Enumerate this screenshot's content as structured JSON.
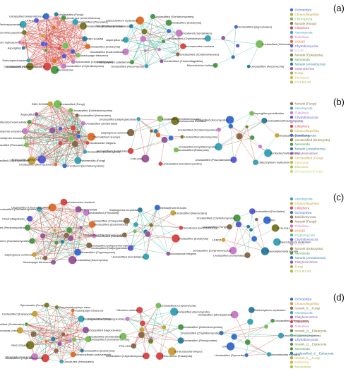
{
  "panels": [
    {
      "letter": "(a)",
      "networks": [
        {
          "labels": [
            "Unclassified (Fungi)",
            "Uncultured (centroheliozoa)",
            "Unclassified (Pinnularia)",
            "Unclassified (Rhizosolenidae)",
            "RM2-SGM58",
            "Unclassified (Eukaryota)",
            "Acaulopage tetraceros",
            "Spiromastix (Chytridiomycota)",
            "Unclassified (Chytridiomycota)",
            "Parmoderma",
            "Unclassified (Sordariomycetes)",
            "Uncultured (H1-10)",
            "Pseudoplectospora",
            "Aspergillus",
            "Cladochytrium replicatum",
            "Dolcemonas japonica",
            "Unclassified (Plectosporaceae)",
            "LKM15",
            "Unclassified (Heterotrichea)"
          ]
        },
        {
          "labels": [
            "Unclassified (Sordariomycetes)",
            "Unclassified (Eukaryota)",
            "Uncultured (Sordariales)",
            "Ischnamoeba montana",
            "Unclassified (Sordariomycetes)",
            "Unclassified (Choanoflagellata)",
            "Unclassified (Ascomycota)",
            "Rhizophydium patellarium",
            "Unclassified (Euamoebida)",
            "Aspergillus sp",
            "Unclassified (Sordariales)",
            "Cladochytrium replicatum"
          ]
        },
        {
          "labels": [
            "Unclassified (Hypocreales)",
            "Unclassified (Heloscales)",
            "Unclassified (Ascomycota)",
            "Microdochium bolleyi",
            "Unclassified (Chytridiomycota)"
          ]
        }
      ],
      "legend": [
        {
          "text": "Ochrophyta",
          "color": "#3b6fcf"
        },
        {
          "text": "Choanoflagellata",
          "color": "#c9a23a"
        },
        {
          "text": "Chlorophyta",
          "color": "#7bbd5a"
        },
        {
          "text": "Norank (Fungi)",
          "color": "#8b6a4a"
        },
        {
          "text": "Ciliophora",
          "color": "#d64a4a"
        },
        {
          "text": "Ascomycota",
          "color": "#3aa3b5"
        },
        {
          "text": "Tubulinea",
          "color": "#c77ec7"
        },
        {
          "text": "LKM15",
          "color": "#e06f2e"
        },
        {
          "text": "Chytridiomycota",
          "color": "#5b5bd6"
        },
        {
          "text": "H1-10",
          "color": "#c7a6e0"
        },
        {
          "text": "Norank (Eukaryota)",
          "color": "#7a7a2a"
        },
        {
          "text": "Nematoda",
          "color": "#4a9a4a"
        },
        {
          "text": "Norank (Amoebozoa)",
          "color": "#2f7f9f"
        },
        {
          "text": "Heterotrichea",
          "color": "#9a5a9a"
        },
        {
          "text": "Fungi",
          "color": "#b5a84a"
        },
        {
          "text": "Cercozoa",
          "color": "#d9b24a"
        },
        {
          "text": "CV1-B1-93",
          "color": "#a8c64a"
        }
      ]
    },
    {
      "letter": "(b)",
      "networks": [
        {
          "labels": [
            "Unclassified (Fungi)",
            "Unclassified (Dothideomycetes)",
            "Unclassified (Heloscales)",
            "Unclassified (Sordariales)",
            "Stenosiphum leucops",
            "Novaraceae elegans",
            "Unclassified (Ascomycota)",
            "Parameciida (Fungi)",
            "Uncultured (Sordariomycetes)",
            "Unclassified (Microsclerida)",
            "Acaulopage tetraceros",
            "Unclassified (Salpingoecidae)",
            "Unclassified (Pinnularia)",
            "Stenosiphum leucops",
            "Saklosporas euryoecia",
            "Unclassified (Ischnamoebida)",
            "Aspergillus",
            "RM2-SGM58"
          ]
        },
        {
          "labels": [
            "Unclassified (Chytridiomycota)",
            "Ischnamoeba montana",
            "Unclassified (Ascomycota)",
            "Unclassified (Eukaryota)",
            "Unclassified (Sordariomycetes)",
            "FFN-2011",
            "Unclassified (Sordariales)",
            "Salpingoeca ventriosa",
            "Unclassified (Salpingoecidae)"
          ]
        },
        {
          "labels": [
            "Aspergillus penicilloides",
            "Unclassified (Rozellomycota)",
            "Unclassified (Eukaryota)",
            "Vorticella (Vorticellinae)",
            "Cladochytrium replicatum",
            "Unclassified (Placotaeniales)",
            "Unclassified (Chytridiomycota)",
            "Unclassified (Sordariomycetes)",
            "Unclassified (Ascomycota)"
          ]
        }
      ],
      "legend": [
        {
          "text": "Norank (Fungi)",
          "color": "#8b6a4a"
        },
        {
          "text": "Ascomycota",
          "color": "#3aa3b5"
        },
        {
          "text": "Tubulinea",
          "color": "#c77ec7"
        },
        {
          "text": "Chytridiomycota",
          "color": "#5b5bd6"
        },
        {
          "text": "H1-10",
          "color": "#c7a6e0"
        },
        {
          "text": "Ciliophora",
          "color": "#d64a4a"
        },
        {
          "text": "Choanoflagellata",
          "color": "#c9a23a"
        },
        {
          "text": "Rozellomycota",
          "color": "#3b6fcf"
        },
        {
          "text": "Unclassified (Eukaryota)",
          "color": "#7a7a2a"
        },
        {
          "text": "Nematoda",
          "color": "#4a9a4a"
        },
        {
          "text": "Norank (Amoebozoa)",
          "color": "#2f7f9f"
        },
        {
          "text": "Platyhelminthes",
          "color": "#9a5a9a"
        },
        {
          "text": "Unclassified (Fungi)",
          "color": "#b5a84a"
        },
        {
          "text": "Cercozoa",
          "color": "#d9b24a"
        },
        {
          "text": "Discosea",
          "color": "#a8c64a"
        },
        {
          "text": "Ochrophyta (Fungi)",
          "color": "#c8d87a"
        }
      ]
    },
    {
      "letter": "(c)",
      "networks": [
        {
          "labels": [
            "Ischnamoeba montana",
            "RM2-SGM58",
            "Unclassified (Pinnularia)",
            "Unclassified (Euamoebida)",
            "Uncultured (Sordariales)",
            "Unclassified (Oligohymenophorea)",
            "Unclassified (Cryptomycota)",
            "Unclassified (Ascomycota)",
            "Acaulopage tetraceros",
            "H1-10",
            "Salpingoeca ventriosa",
            "Uncultured (Sordariomycetes)",
            "Unclassified (Pezizomycotina)",
            "Choanoflagellates_2",
            "Unclassified (Sordariomycetes)",
            "Unclassified (Choanoflagellata)"
          ]
        },
        {
          "labels": [
            "Stenosiphum leucops",
            "Unclassified (Heloscales)",
            "Uncultured (centroheliozoa)",
            "Unclassified (Eukaryota)",
            "Novaraceae elegans",
            "Unclassified (Sordariales)",
            "Unclassified (Salpingoecidae)",
            "Unclassified (Plectosporaceae)",
            "Unclassified (Craspedida)",
            "Salpingoeca euryoecia"
          ]
        },
        {
          "labels": [
            "Unclassified (Eurotiales)",
            "CRI7",
            "FFN-2011",
            "Cladochytrium replicatum",
            "Pseudoplectania nigrella",
            "Unclassified (Sordariales)",
            "Unclassified (Chytridiomycota)",
            "LKM15",
            "Unclassified (Fungi)",
            "Unclassified (Chytridiomycota)"
          ]
        }
      ],
      "legend": [
        {
          "text": "Ascomycota",
          "color": "#3aa3b5"
        },
        {
          "text": "Choanoflagellata",
          "color": "#c9a23a"
        },
        {
          "text": "Ciliophora",
          "color": "#d64a4a"
        },
        {
          "text": "Ochrophyta",
          "color": "#3b6fcf"
        },
        {
          "text": "Basidiomycota",
          "color": "#8b6a4a"
        },
        {
          "text": "Norank (Fungi)",
          "color": "#7b5a3a"
        },
        {
          "text": "Tubulinea",
          "color": "#c77ec7"
        },
        {
          "text": "LKM15",
          "color": "#e06f2e"
        },
        {
          "text": "Cryptomycota",
          "color": "#5bbd9a"
        },
        {
          "text": "Chytridiomycota",
          "color": "#5b5bd6"
        },
        {
          "text": "H1-10",
          "color": "#c7a6e0"
        },
        {
          "text": "Norank (Eukaryota)",
          "color": "#7a7a2a"
        },
        {
          "text": "Nematoda",
          "color": "#4a9a4a"
        },
        {
          "text": "Norank (Amoebozoa)",
          "color": "#2f7f9f"
        },
        {
          "text": "Platyhelminthes",
          "color": "#9a5a9a"
        },
        {
          "text": "Fungi",
          "color": "#b5a84a"
        },
        {
          "text": "CV1-B1-93",
          "color": "#a8c64a"
        }
      ]
    },
    {
      "letter": "(d)",
      "networks": [
        {
          "labels": [
            "Pseudoplatyophrya nana",
            "Acaulopage tetraceros",
            "Salpingoeca ventriosa",
            "Unclassified (Hypocreales)",
            "Unclassified (Sordariomycetes)",
            "Unclassified (Eukaryota)",
            "Micronuclearia podoventralis",
            "Uncultured (Heloscales)",
            "Unclassified (Chytridiomycota)",
            "Stenosiphum leucops",
            "RM2-SGM58",
            "Dolcemonas vorax",
            "Unclassified (Sordariales)",
            "Unclassified (Eukaryota)",
            "Spiromastix (Fungi)"
          ]
        },
        {
          "labels": [
            "Unclassified (Cryptomycota)",
            "Unclassified (Ascomycota)",
            "Unclassified (Dothideomycetes)",
            "Unclassified (Pleosporales)",
            "Schizosaccharomyces",
            "Pleurotricha (Eukaryota)",
            "Unclassified (Chytridiomycota)",
            "FFN-2011",
            "Unclassified (Sordariales)",
            "Unclassified (Salpingoecidae)",
            "Meloiera varians"
          ]
        },
        {
          "labels": [
            "Cladochytrium replicatum",
            "Unclassified (Pleosporales)",
            "Uncultured (Sordariomycetes)",
            "Ischnamoeba montana",
            "Unclassified (Spumella)",
            "CRI7",
            "Unclassified (Chytridiomycota)",
            "Unclassified (Monhysterida)"
          ]
        }
      ],
      "legend": [
        {
          "text": "Ochrophyta",
          "color": "#3b6fcf"
        },
        {
          "text": "Choanoflagellata",
          "color": "#c9a23a"
        },
        {
          "text": "norank_k__Fungi",
          "color": "#8b6a4a"
        },
        {
          "text": "Ascomycota",
          "color": "#3aa3b5"
        },
        {
          "text": "Platyhelminthes",
          "color": "#9a5a9a"
        },
        {
          "text": "Ciliophora",
          "color": "#d64a4a"
        },
        {
          "text": "Tubulinea",
          "color": "#c77ec7"
        },
        {
          "text": "norank_d__Eukaryota",
          "color": "#7a7a2a"
        },
        {
          "text": "Cryptomycota",
          "color": "#5bbd9a"
        },
        {
          "text": "Chytridiomycota",
          "color": "#5b5bd6"
        },
        {
          "text": "norank_d__Eukaryota",
          "color": "#6a8a3a"
        },
        {
          "text": "Nematoda",
          "color": "#4a9a4a"
        },
        {
          "text": "unclassified_d__Eukaryota",
          "color": "#2f7f9f"
        },
        {
          "text": "norank_k__Fungi",
          "color": "#b5a84a"
        },
        {
          "text": "Cercozoa",
          "color": "#d9b24a"
        },
        {
          "text": "Nucleariida",
          "color": "#a8c64a"
        }
      ]
    }
  ]
}
